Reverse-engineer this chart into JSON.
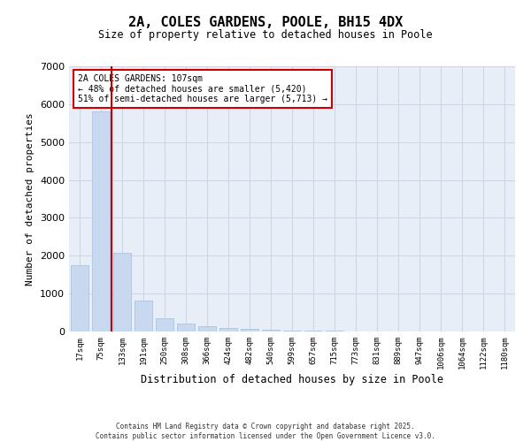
{
  "title_line1": "2A, COLES GARDENS, POOLE, BH15 4DX",
  "title_line2": "Size of property relative to detached houses in Poole",
  "xlabel": "Distribution of detached houses by size in Poole",
  "ylabel": "Number of detached properties",
  "categories": [
    "17sqm",
    "75sqm",
    "133sqm",
    "191sqm",
    "250sqm",
    "308sqm",
    "366sqm",
    "424sqm",
    "482sqm",
    "540sqm",
    "599sqm",
    "657sqm",
    "715sqm",
    "773sqm",
    "831sqm",
    "889sqm",
    "947sqm",
    "1006sqm",
    "1064sqm",
    "1122sqm",
    "1180sqm"
  ],
  "values": [
    1760,
    5820,
    2080,
    820,
    340,
    210,
    130,
    90,
    75,
    55,
    30,
    20,
    15,
    8,
    5,
    4,
    3,
    2,
    2,
    1,
    1
  ],
  "bar_color": "#c8d8ee",
  "bar_edgecolor": "#a8bcd8",
  "vline_color": "#cc0000",
  "annotation_title": "2A COLES GARDENS: 107sqm",
  "annotation_line2": "← 48% of detached houses are smaller (5,420)",
  "annotation_line3": "51% of semi-detached houses are larger (5,713) →",
  "annotation_box_color": "#cc0000",
  "annotation_box_fill": "#ffffff",
  "ylim": [
    0,
    7000
  ],
  "yticks": [
    0,
    1000,
    2000,
    3000,
    4000,
    5000,
    6000,
    7000
  ],
  "grid_color": "#ccd4e4",
  "background_color": "#e8eef8",
  "footer_line1": "Contains HM Land Registry data © Crown copyright and database right 2025.",
  "footer_line2": "Contains public sector information licensed under the Open Government Licence v3.0."
}
